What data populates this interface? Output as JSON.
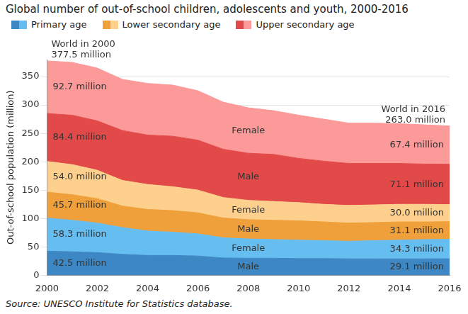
{
  "chart_data": {
    "type": "area",
    "title": "Global number of out-of-school children, adolescents and youth, 2000-2016",
    "y_label": "Out-of-school population (million)",
    "source": "Source: UNESCO Institute for Statistics database.",
    "x": [
      2000,
      2001,
      2002,
      2003,
      2004,
      2005,
      2006,
      2007,
      2008,
      2009,
      2010,
      2011,
      2012,
      2013,
      2014,
      2015,
      2016
    ],
    "xlim": [
      2000,
      2016
    ],
    "xticks": [
      2000,
      2002,
      2004,
      2006,
      2008,
      2010,
      2012,
      2014,
      2016
    ],
    "ylim": [
      0,
      380
    ],
    "yticks": [
      0,
      50,
      100,
      150,
      200,
      250,
      300,
      350
    ],
    "grid": true,
    "stacked": true,
    "legend": "top",
    "data_labels": true,
    "annotations": [
      {
        "x": 2000,
        "lines": [
          "World in 2000",
          "377.5 million"
        ]
      },
      {
        "x": 2016,
        "lines": [
          "World in 2016",
          "263.0 million"
        ]
      }
    ],
    "series": [
      {
        "name": "Male",
        "group": "Primary age",
        "color": "#3d88c4",
        "values": [
          42.5,
          41.5,
          40,
          37,
          35,
          35,
          34,
          30.5,
          30,
          30,
          29.5,
          29.5,
          29,
          29,
          29,
          29,
          29.1
        ],
        "value_labels": [
          "42.5 million",
          null,
          null,
          null,
          null,
          null,
          null,
          null,
          null,
          null,
          null,
          null,
          null,
          null,
          null,
          null,
          "29.1 million"
        ]
      },
      {
        "name": "Female",
        "group": "Primary age",
        "color": "#66bdf0",
        "values": [
          58.3,
          55.5,
          52,
          47,
          43,
          41,
          39,
          35.5,
          34,
          33,
          32.5,
          31.5,
          31,
          32,
          33,
          34,
          34.3
        ],
        "value_labels": [
          "58.3 million",
          null,
          null,
          null,
          null,
          null,
          null,
          null,
          null,
          null,
          null,
          null,
          null,
          null,
          null,
          null,
          "34.3 million"
        ]
      },
      {
        "name": "Male",
        "group": "Lower secondary age",
        "color": "#efa03a",
        "values": [
          45.7,
          45,
          43,
          38,
          38,
          38,
          37,
          35,
          34,
          34,
          34,
          33,
          32,
          32,
          32,
          31,
          31.1
        ],
        "value_labels": [
          "45.7 million",
          null,
          null,
          null,
          null,
          null,
          null,
          null,
          null,
          null,
          null,
          null,
          null,
          null,
          null,
          null,
          "31.1 million"
        ]
      },
      {
        "name": "Female",
        "group": "Lower secondary age",
        "color": "#fdd08d",
        "values": [
          54.0,
          53,
          50,
          45,
          44,
          42,
          40,
          36,
          34,
          33,
          32,
          31,
          31,
          31,
          31,
          31,
          30.0
        ],
        "value_labels": [
          "54.0 million",
          null,
          null,
          null,
          null,
          null,
          null,
          null,
          null,
          null,
          null,
          null,
          null,
          null,
          null,
          null,
          "30.0 million"
        ]
      },
      {
        "name": "Male",
        "group": "Upper secondary age",
        "color": "#e24a4a",
        "values": [
          84.4,
          87,
          87,
          88,
          87,
          89,
          88,
          85,
          83,
          83,
          78,
          76,
          74,
          73,
          72,
          71,
          71.1
        ],
        "value_labels": [
          "84.4 million",
          null,
          null,
          null,
          null,
          null,
          null,
          null,
          null,
          null,
          null,
          null,
          null,
          null,
          null,
          null,
          "71.1 million"
        ]
      },
      {
        "name": "Female",
        "group": "Upper secondary age",
        "color": "#fc9a9a",
        "values": [
          92.7,
          93,
          93,
          90,
          91,
          90,
          87,
          83,
          80,
          77,
          76,
          74,
          71,
          71,
          70,
          69,
          67.4
        ],
        "value_labels": [
          "92.7 million",
          null,
          null,
          null,
          null,
          null,
          null,
          null,
          null,
          null,
          null,
          null,
          null,
          null,
          null,
          null,
          "67.4 million"
        ]
      }
    ]
  }
}
